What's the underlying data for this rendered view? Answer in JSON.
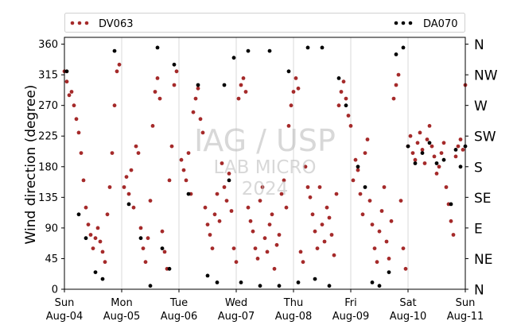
{
  "chart_data": {
    "type": "scatter",
    "title": "",
    "xlabel": "",
    "ylabel": "Wind direction (degree)",
    "ylim": [
      0,
      370
    ],
    "xlim": [
      "2024-08-04",
      "2024-08-11"
    ],
    "y_ticks": [
      0,
      45,
      90,
      135,
      180,
      225,
      270,
      315,
      360
    ],
    "x_ticks": [
      {
        "day": "Sun",
        "date": "Aug-04"
      },
      {
        "day": "Mon",
        "date": "Aug-05"
      },
      {
        "day": "Tue",
        "date": "Aug-06"
      },
      {
        "day": "Wed",
        "date": "Aug-07"
      },
      {
        "day": "Thu",
        "date": "Aug-08"
      },
      {
        "day": "Fri",
        "date": "Aug-09"
      },
      {
        "day": "Sat",
        "date": "Aug-10"
      },
      {
        "day": "Sun",
        "date": "Aug-11"
      }
    ],
    "right_axis_labels": [
      "N",
      "NE",
      "E",
      "SE",
      "S",
      "SW",
      "W",
      "NW",
      "N"
    ],
    "grid": "vertical lines at day boundaries",
    "legend_position": "top, outside plot area",
    "watermark": {
      "title": "IAG / USP",
      "subtitle": "LAB MICRO",
      "year": "2024"
    },
    "series": [
      {
        "name": "DV063",
        "color": "#a52a2a",
        "points": [
          {
            "x": "2024-08-04 00:00",
            "y": 320
          },
          {
            "x": "2024-08-04 01:00",
            "y": 305
          },
          {
            "x": "2024-08-04 02:00",
            "y": 285
          },
          {
            "x": "2024-08-04 03:00",
            "y": 290
          },
          {
            "x": "2024-08-04 04:00",
            "y": 270
          },
          {
            "x": "2024-08-04 05:00",
            "y": 250
          },
          {
            "x": "2024-08-04 06:00",
            "y": 230
          },
          {
            "x": "2024-08-04 07:00",
            "y": 200
          },
          {
            "x": "2024-08-04 08:00",
            "y": 160
          },
          {
            "x": "2024-08-04 09:00",
            "y": 120
          },
          {
            "x": "2024-08-04 10:00",
            "y": 95
          },
          {
            "x": "2024-08-04 11:00",
            "y": 80
          },
          {
            "x": "2024-08-04 12:00",
            "y": 60
          },
          {
            "x": "2024-08-04 13:00",
            "y": 75
          },
          {
            "x": "2024-08-04 14:00",
            "y": 90
          },
          {
            "x": "2024-08-04 15:00",
            "y": 70
          },
          {
            "x": "2024-08-04 16:00",
            "y": 55
          },
          {
            "x": "2024-08-04 17:00",
            "y": 40
          },
          {
            "x": "2024-08-04 18:00",
            "y": 110
          },
          {
            "x": "2024-08-04 19:00",
            "y": 150
          },
          {
            "x": "2024-08-04 20:00",
            "y": 200
          },
          {
            "x": "2024-08-04 21:00",
            "y": 270
          },
          {
            "x": "2024-08-04 22:00",
            "y": 320
          },
          {
            "x": "2024-08-04 23:00",
            "y": 330
          },
          {
            "x": "2024-08-05 01:00",
            "y": 150
          },
          {
            "x": "2024-08-05 02:00",
            "y": 165
          },
          {
            "x": "2024-08-05 03:00",
            "y": 140
          },
          {
            "x": "2024-08-05 04:00",
            "y": 175
          },
          {
            "x": "2024-08-05 05:00",
            "y": 120
          },
          {
            "x": "2024-08-05 06:00",
            "y": 210
          },
          {
            "x": "2024-08-05 07:00",
            "y": 200
          },
          {
            "x": "2024-08-05 08:00",
            "y": 90
          },
          {
            "x": "2024-08-05 09:00",
            "y": 60
          },
          {
            "x": "2024-08-05 10:00",
            "y": 40
          },
          {
            "x": "2024-08-05 11:00",
            "y": 75
          },
          {
            "x": "2024-08-05 12:00",
            "y": 130
          },
          {
            "x": "2024-08-05 13:00",
            "y": 240
          },
          {
            "x": "2024-08-05 14:00",
            "y": 290
          },
          {
            "x": "2024-08-05 15:00",
            "y": 310
          },
          {
            "x": "2024-08-05 16:00",
            "y": 280
          },
          {
            "x": "2024-08-05 17:00",
            "y": 85
          },
          {
            "x": "2024-08-05 18:00",
            "y": 55
          },
          {
            "x": "2024-08-05 19:00",
            "y": 30
          },
          {
            "x": "2024-08-05 20:00",
            "y": 160
          },
          {
            "x": "2024-08-05 21:00",
            "y": 210
          },
          {
            "x": "2024-08-05 22:00",
            "y": 300
          },
          {
            "x": "2024-08-05 23:00",
            "y": 320
          },
          {
            "x": "2024-08-06 01:00",
            "y": 190
          },
          {
            "x": "2024-08-06 02:00",
            "y": 175
          },
          {
            "x": "2024-08-06 03:00",
            "y": 160
          },
          {
            "x": "2024-08-06 04:00",
            "y": 200
          },
          {
            "x": "2024-08-06 05:00",
            "y": 140
          },
          {
            "x": "2024-08-06 06:00",
            "y": 260
          },
          {
            "x": "2024-08-06 07:00",
            "y": 280
          },
          {
            "x": "2024-08-06 08:00",
            "y": 295
          },
          {
            "x": "2024-08-06 09:00",
            "y": 250
          },
          {
            "x": "2024-08-06 10:00",
            "y": 230
          },
          {
            "x": "2024-08-06 11:00",
            "y": 120
          },
          {
            "x": "2024-08-06 12:00",
            "y": 95
          },
          {
            "x": "2024-08-06 13:00",
            "y": 80
          },
          {
            "x": "2024-08-06 14:00",
            "y": 60
          },
          {
            "x": "2024-08-06 15:00",
            "y": 110
          },
          {
            "x": "2024-08-06 16:00",
            "y": 140
          },
          {
            "x": "2024-08-06 17:00",
            "y": 100
          },
          {
            "x": "2024-08-06 18:00",
            "y": 185
          },
          {
            "x": "2024-08-06 19:00",
            "y": 150
          },
          {
            "x": "2024-08-06 20:00",
            "y": 130
          },
          {
            "x": "2024-08-06 21:00",
            "y": 170
          },
          {
            "x": "2024-08-06 22:00",
            "y": 115
          },
          {
            "x": "2024-08-06 23:00",
            "y": 60
          },
          {
            "x": "2024-08-07 00:00",
            "y": 40
          },
          {
            "x": "2024-08-07 01:00",
            "y": 280
          },
          {
            "x": "2024-08-07 02:00",
            "y": 300
          },
          {
            "x": "2024-08-07 03:00",
            "y": 310
          },
          {
            "x": "2024-08-07 04:00",
            "y": 290
          },
          {
            "x": "2024-08-07 05:00",
            "y": 120
          },
          {
            "x": "2024-08-07 06:00",
            "y": 100
          },
          {
            "x": "2024-08-07 07:00",
            "y": 85
          },
          {
            "x": "2024-08-07 08:00",
            "y": 60
          },
          {
            "x": "2024-08-07 09:00",
            "y": 45
          },
          {
            "x": "2024-08-07 10:00",
            "y": 130
          },
          {
            "x": "2024-08-07 11:00",
            "y": 150
          },
          {
            "x": "2024-08-07 12:00",
            "y": 75
          },
          {
            "x": "2024-08-07 13:00",
            "y": 55
          },
          {
            "x": "2024-08-07 14:00",
            "y": 95
          },
          {
            "x": "2024-08-07 15:00",
            "y": 110
          },
          {
            "x": "2024-08-07 16:00",
            "y": 30
          },
          {
            "x": "2024-08-07 17:00",
            "y": 65
          },
          {
            "x": "2024-08-07 18:00",
            "y": 80
          },
          {
            "x": "2024-08-07 19:00",
            "y": 140
          },
          {
            "x": "2024-08-07 20:00",
            "y": 160
          },
          {
            "x": "2024-08-07 21:00",
            "y": 120
          },
          {
            "x": "2024-08-07 22:00",
            "y": 240
          },
          {
            "x": "2024-08-07 23:00",
            "y": 270
          },
          {
            "x": "2024-08-08 00:00",
            "y": 290
          },
          {
            "x": "2024-08-08 01:00",
            "y": 310
          },
          {
            "x": "2024-08-08 02:00",
            "y": 295
          },
          {
            "x": "2024-08-08 03:00",
            "y": 55
          },
          {
            "x": "2024-08-08 04:00",
            "y": 40
          },
          {
            "x": "2024-08-08 05:00",
            "y": 180
          },
          {
            "x": "2024-08-08 06:00",
            "y": 150
          },
          {
            "x": "2024-08-08 07:00",
            "y": 135
          },
          {
            "x": "2024-08-08 08:00",
            "y": 110
          },
          {
            "x": "2024-08-08 09:00",
            "y": 85
          },
          {
            "x": "2024-08-08 10:00",
            "y": 60
          },
          {
            "x": "2024-08-08 11:00",
            "y": 150
          },
          {
            "x": "2024-08-08 12:00",
            "y": 95
          },
          {
            "x": "2024-08-08 13:00",
            "y": 70
          },
          {
            "x": "2024-08-08 14:00",
            "y": 120
          },
          {
            "x": "2024-08-08 15:00",
            "y": 105
          },
          {
            "x": "2024-08-08 16:00",
            "y": 80
          },
          {
            "x": "2024-08-08 17:00",
            "y": 50
          },
          {
            "x": "2024-08-08 18:00",
            "y": 140
          },
          {
            "x": "2024-08-08 19:00",
            "y": 270
          },
          {
            "x": "2024-08-08 20:00",
            "y": 290
          },
          {
            "x": "2024-08-08 21:00",
            "y": 305
          },
          {
            "x": "2024-08-08 22:00",
            "y": 280
          },
          {
            "x": "2024-08-08 23:00",
            "y": 255
          },
          {
            "x": "2024-08-09 00:00",
            "y": 240
          },
          {
            "x": "2024-08-09 01:00",
            "y": 160
          },
          {
            "x": "2024-08-09 02:00",
            "y": 190
          },
          {
            "x": "2024-08-09 03:00",
            "y": 175
          },
          {
            "x": "2024-08-09 04:00",
            "y": 140
          },
          {
            "x": "2024-08-09 05:00",
            "y": 110
          },
          {
            "x": "2024-08-09 06:00",
            "y": 200
          },
          {
            "x": "2024-08-09 07:00",
            "y": 220
          },
          {
            "x": "2024-08-09 08:00",
            "y": 130
          },
          {
            "x": "2024-08-09 09:00",
            "y": 95
          },
          {
            "x": "2024-08-09 10:00",
            "y": 60
          },
          {
            "x": "2024-08-09 11:00",
            "y": 40
          },
          {
            "x": "2024-08-09 12:00",
            "y": 85
          },
          {
            "x": "2024-08-09 13:00",
            "y": 115
          },
          {
            "x": "2024-08-09 14:00",
            "y": 150
          },
          {
            "x": "2024-08-09 15:00",
            "y": 70
          },
          {
            "x": "2024-08-09 16:00",
            "y": 45
          },
          {
            "x": "2024-08-09 17:00",
            "y": 100
          },
          {
            "x": "2024-08-09 18:00",
            "y": 280
          },
          {
            "x": "2024-08-09 19:00",
            "y": 300
          },
          {
            "x": "2024-08-09 20:00",
            "y": 315
          },
          {
            "x": "2024-08-09 21:00",
            "y": 130
          },
          {
            "x": "2024-08-09 22:00",
            "y": 60
          },
          {
            "x": "2024-08-09 23:00",
            "y": 30
          },
          {
            "x": "2024-08-10 00:00",
            "y": 210
          },
          {
            "x": "2024-08-10 01:00",
            "y": 225
          },
          {
            "x": "2024-08-10 02:00",
            "y": 200
          },
          {
            "x": "2024-08-10 03:00",
            "y": 190
          },
          {
            "x": "2024-08-10 04:00",
            "y": 215
          },
          {
            "x": "2024-08-10 05:00",
            "y": 230
          },
          {
            "x": "2024-08-10 06:00",
            "y": 205
          },
          {
            "x": "2024-08-10 07:00",
            "y": 185
          },
          {
            "x": "2024-08-10 08:00",
            "y": 220
          },
          {
            "x": "2024-08-10 09:00",
            "y": 240
          },
          {
            "x": "2024-08-10 10:00",
            "y": 210
          },
          {
            "x": "2024-08-10 11:00",
            "y": 195
          },
          {
            "x": "2024-08-10 12:00",
            "y": 170
          },
          {
            "x": "2024-08-10 13:00",
            "y": 180
          },
          {
            "x": "2024-08-10 14:00",
            "y": 200
          },
          {
            "x": "2024-08-10 15:00",
            "y": 215
          },
          {
            "x": "2024-08-10 16:00",
            "y": 150
          },
          {
            "x": "2024-08-10 17:00",
            "y": 125
          },
          {
            "x": "2024-08-10 18:00",
            "y": 100
          },
          {
            "x": "2024-08-10 19:00",
            "y": 80
          },
          {
            "x": "2024-08-10 20:00",
            "y": 195
          },
          {
            "x": "2024-08-10 21:00",
            "y": 210
          },
          {
            "x": "2024-08-10 22:00",
            "y": 220
          },
          {
            "x": "2024-08-10 23:00",
            "y": 205
          },
          {
            "x": "2024-08-11 00:00",
            "y": 300
          }
        ]
      },
      {
        "name": "DA070",
        "color": "#000000",
        "points": [
          {
            "x": "2024-08-04 01:00",
            "y": 320
          },
          {
            "x": "2024-08-04 06:00",
            "y": 110
          },
          {
            "x": "2024-08-04 09:00",
            "y": 75
          },
          {
            "x": "2024-08-04 13:00",
            "y": 25
          },
          {
            "x": "2024-08-04 16:00",
            "y": 15
          },
          {
            "x": "2024-08-04 21:00",
            "y": 350
          },
          {
            "x": "2024-08-05 03:00",
            "y": 125
          },
          {
            "x": "2024-08-05 08:00",
            "y": 75
          },
          {
            "x": "2024-08-05 12:00",
            "y": 5
          },
          {
            "x": "2024-08-05 15:00",
            "y": 355
          },
          {
            "x": "2024-08-05 17:00",
            "y": 60
          },
          {
            "x": "2024-08-05 20:00",
            "y": 30
          },
          {
            "x": "2024-08-05 22:00",
            "y": 330
          },
          {
            "x": "2024-08-06 04:00",
            "y": 140
          },
          {
            "x": "2024-08-06 08:00",
            "y": 300
          },
          {
            "x": "2024-08-06 12:00",
            "y": 20
          },
          {
            "x": "2024-08-06 16:00",
            "y": 10
          },
          {
            "x": "2024-08-06 19:00",
            "y": 300
          },
          {
            "x": "2024-08-06 21:00",
            "y": 160
          },
          {
            "x": "2024-08-06 23:00",
            "y": 340
          },
          {
            "x": "2024-08-07 02:00",
            "y": 10
          },
          {
            "x": "2024-08-07 05:00",
            "y": 350
          },
          {
            "x": "2024-08-07 10:00",
            "y": 5
          },
          {
            "x": "2024-08-07 14:00",
            "y": 350
          },
          {
            "x": "2024-08-07 18:00",
            "y": 5
          },
          {
            "x": "2024-08-07 22:00",
            "y": 320
          },
          {
            "x": "2024-08-08 02:00",
            "y": 10
          },
          {
            "x": "2024-08-08 06:00",
            "y": 355
          },
          {
            "x": "2024-08-08 09:00",
            "y": 15
          },
          {
            "x": "2024-08-08 12:00",
            "y": 355
          },
          {
            "x": "2024-08-08 15:00",
            "y": 5
          },
          {
            "x": "2024-08-08 19:00",
            "y": 310
          },
          {
            "x": "2024-08-08 22:00",
            "y": 270
          },
          {
            "x": "2024-08-09 03:00",
            "y": 180
          },
          {
            "x": "2024-08-09 06:00",
            "y": 150
          },
          {
            "x": "2024-08-09 09:00",
            "y": 10
          },
          {
            "x": "2024-08-09 12:00",
            "y": 5
          },
          {
            "x": "2024-08-09 16:00",
            "y": 25
          },
          {
            "x": "2024-08-09 19:00",
            "y": 345
          },
          {
            "x": "2024-08-09 22:00",
            "y": 355
          },
          {
            "x": "2024-08-10 00:00",
            "y": 210
          },
          {
            "x": "2024-08-10 03:00",
            "y": 185
          },
          {
            "x": "2024-08-10 06:00",
            "y": 200
          },
          {
            "x": "2024-08-10 09:00",
            "y": 215
          },
          {
            "x": "2024-08-10 12:00",
            "y": 185
          },
          {
            "x": "2024-08-10 15:00",
            "y": 190
          },
          {
            "x": "2024-08-10 18:00",
            "y": 125
          },
          {
            "x": "2024-08-10 20:00",
            "y": 205
          },
          {
            "x": "2024-08-10 22:00",
            "y": 180
          },
          {
            "x": "2024-08-11 00:00",
            "y": 210
          }
        ]
      }
    ]
  }
}
